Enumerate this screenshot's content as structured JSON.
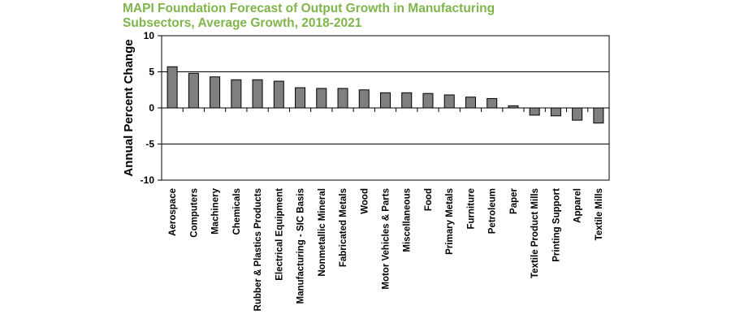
{
  "chart_data": {
    "type": "bar",
    "title_line1": "MAPI Foundation Forecast of Output Growth in Manufacturing",
    "title_line2": "Subsectors, Average Growth, 2018-2021",
    "xlabel": "",
    "ylabel": "Annual Percent Change",
    "ylim": [
      -10,
      10
    ],
    "yticks": [
      10,
      5,
      0,
      -5,
      -10
    ],
    "grid": true,
    "categories": [
      "Aerospace",
      "Computers",
      "Machinery",
      "Chemicals",
      "Rubber & Plastics Products",
      "Electrical Equipment",
      "Manufacturing - SIC Basis",
      "Nonmetallic Mineral",
      "Fabricated Metals",
      "Wood",
      "Motor Vehicles & Parts",
      "Miscellaneous",
      "Food",
      "Primary Metals",
      "Furniture",
      "Petroleum",
      "Paper",
      "Textile Product Mills",
      "Printing Support",
      "Apparel",
      "Textile Mills"
    ],
    "values": [
      5.7,
      4.8,
      4.3,
      3.9,
      3.9,
      3.7,
      2.8,
      2.7,
      2.7,
      2.5,
      2.1,
      2.1,
      2.0,
      1.8,
      1.5,
      1.3,
      0.3,
      -1.0,
      -1.1,
      -1.7,
      -2.1
    ],
    "bar_color": "#7f7f7f",
    "title_color": "#7fb54a"
  }
}
